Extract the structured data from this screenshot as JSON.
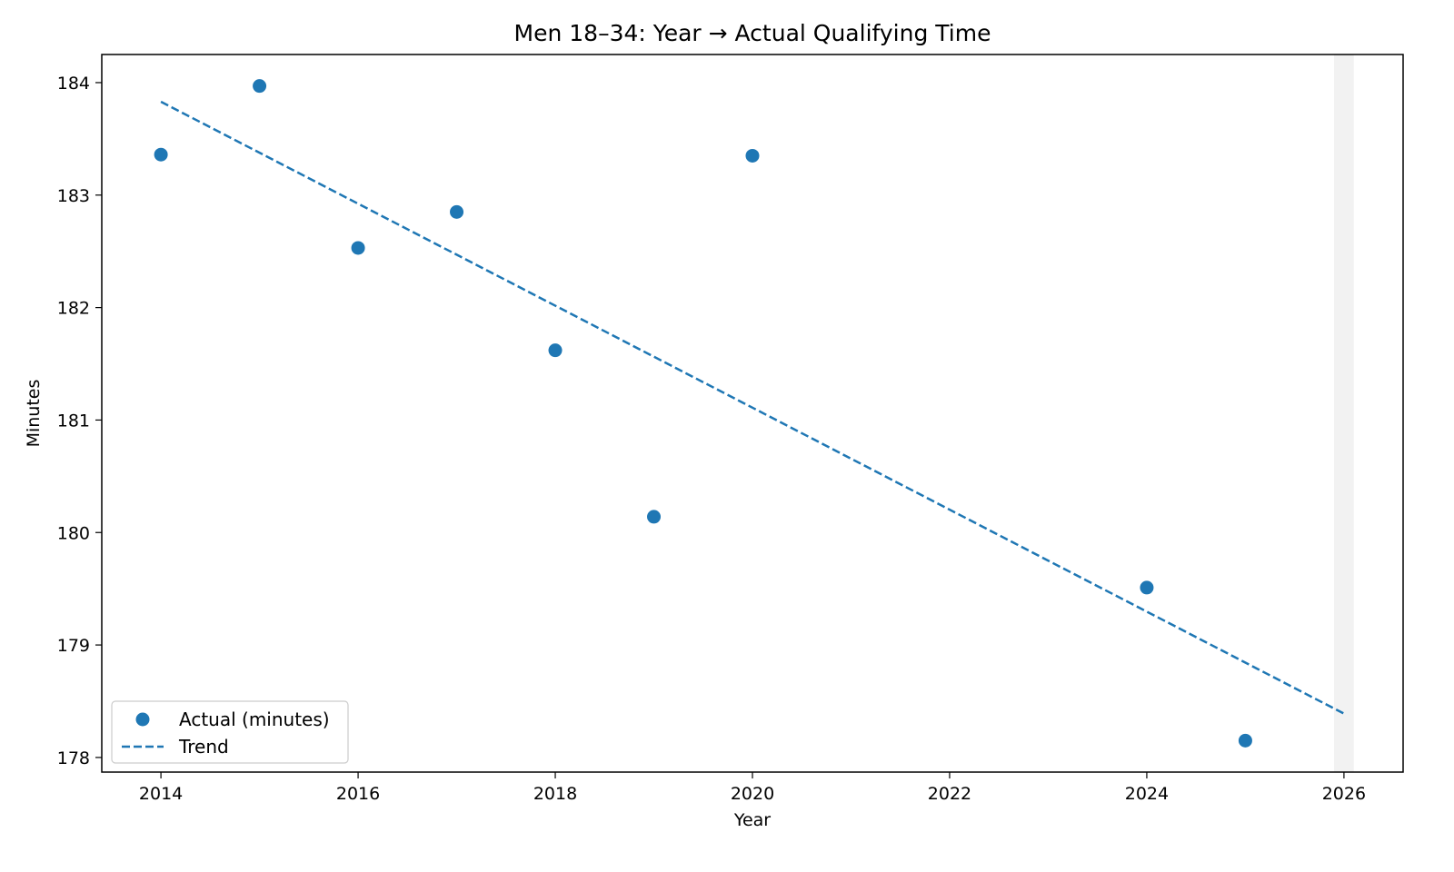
{
  "chart_data": {
    "type": "scatter",
    "title": "Men 18–34: Year → Actual Qualifying Time",
    "xlabel": "Year",
    "ylabel": "Minutes",
    "xlim": [
      2013.4,
      2026.6
    ],
    "ylim": [
      177.87,
      184.25
    ],
    "xticks": [
      2014,
      2016,
      2018,
      2020,
      2022,
      2024,
      2026
    ],
    "yticks": [
      178,
      179,
      180,
      181,
      182,
      183,
      184
    ],
    "grid": false,
    "legend_position": "lower-left",
    "shaded_band": {
      "x": [
        2025.9,
        2026.1
      ],
      "color": "#f2f2f2"
    },
    "series": [
      {
        "name": "Actual (minutes)",
        "kind": "scatter",
        "color": "#1f77b4",
        "points": [
          {
            "x": 2014,
            "y": 183.36
          },
          {
            "x": 2015,
            "y": 183.97
          },
          {
            "x": 2016,
            "y": 182.53
          },
          {
            "x": 2017,
            "y": 182.85
          },
          {
            "x": 2018,
            "y": 181.62
          },
          {
            "x": 2019,
            "y": 180.14
          },
          {
            "x": 2020,
            "y": 183.35
          },
          {
            "x": 2024,
            "y": 179.51
          },
          {
            "x": 2025,
            "y": 178.15
          }
        ]
      },
      {
        "name": "Trend",
        "kind": "line",
        "style": "dashed",
        "color": "#1f77b4",
        "points": [
          {
            "x": 2014,
            "y": 183.83
          },
          {
            "x": 2026,
            "y": 178.39
          }
        ]
      }
    ]
  }
}
